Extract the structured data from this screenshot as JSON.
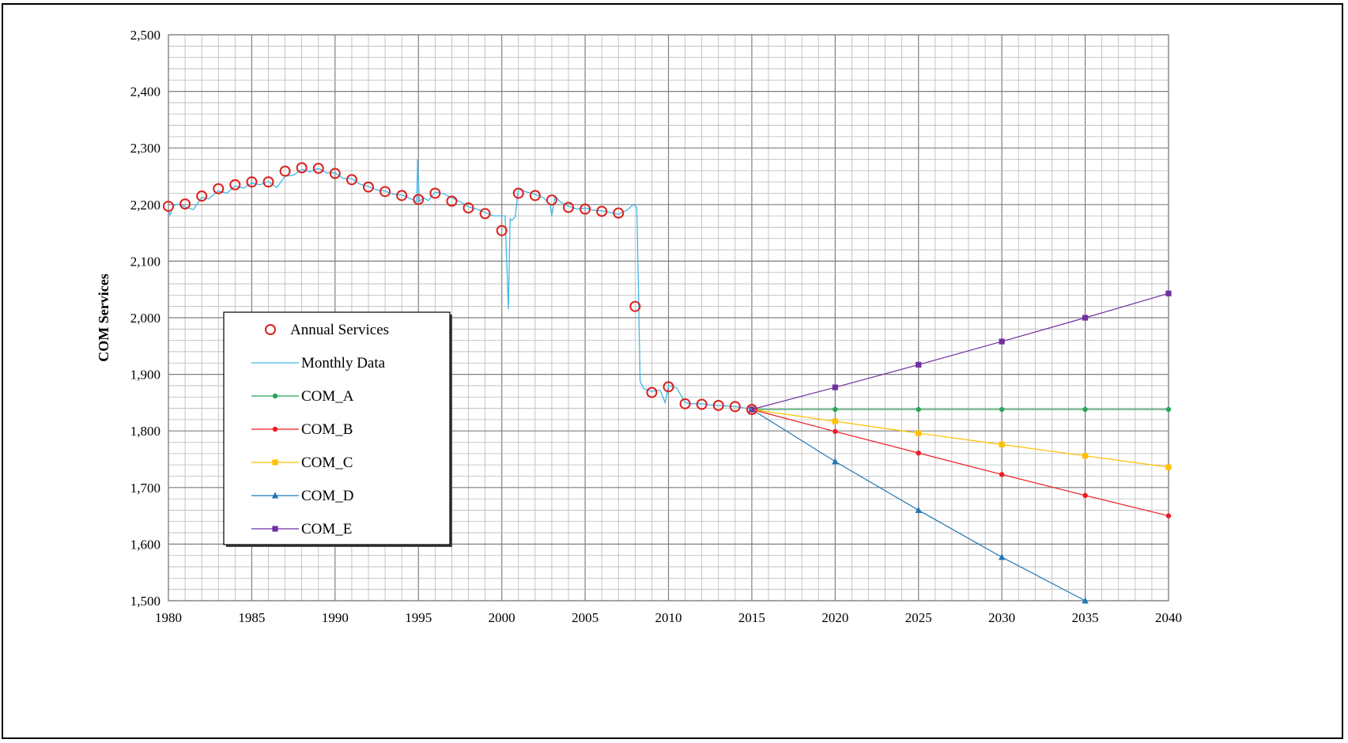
{
  "chart_data": {
    "type": "line",
    "title": "",
    "xlabel": "",
    "ylabel": "COM Services",
    "xlim": [
      1980,
      2040
    ],
    "ylim": [
      1500,
      2500
    ],
    "x_ticks": [
      "1980",
      "1985",
      "1990",
      "1995",
      "2000",
      "2005",
      "2010",
      "2015",
      "2020",
      "2025",
      "2030",
      "2035",
      "2040"
    ],
    "y_ticks": [
      "1,500",
      "1,600",
      "1,700",
      "1,800",
      "1,900",
      "2,000",
      "2,100",
      "2,200",
      "2,300",
      "2,400",
      "2,500"
    ],
    "grid": true,
    "legend_position": "center-left",
    "legend": [
      "Annual Services",
      "Monthly Data",
      "COM_A",
      "COM_B",
      "COM_C",
      "COM_D",
      "COM_E"
    ],
    "series": [
      {
        "name": "Annual Services",
        "style": "open-circle",
        "color": "#d9211f",
        "x": [
          1980,
          1981,
          1982,
          1983,
          1984,
          1985,
          1986,
          1987,
          1988,
          1989,
          1990,
          1991,
          1992,
          1993,
          1994,
          1995,
          1996,
          1997,
          1998,
          1999,
          2000,
          2001,
          2002,
          2003,
          2004,
          2005,
          2006,
          2007,
          2008,
          2009,
          2010,
          2011,
          2012,
          2013,
          2014,
          2015
        ],
        "values": [
          2197,
          2201,
          2215,
          2228,
          2235,
          2240,
          2240,
          2259,
          2265,
          2264,
          2255,
          2244,
          2231,
          2223,
          2216,
          2209,
          2220,
          2206,
          2194,
          2184,
          2154,
          2220,
          2216,
          2208,
          2195,
          2192,
          2188,
          2185,
          2020,
          1868,
          1878,
          1848,
          1847,
          1845,
          1843,
          1838
        ]
      },
      {
        "name": "Monthly Data",
        "style": "line",
        "color": "#41b6e6",
        "x": [
          1980,
          1980.1,
          1980.3,
          1980.6,
          1981,
          1981.5,
          1982,
          1982.4,
          1983,
          1983.5,
          1984,
          1984.5,
          1985,
          1985.5,
          1986,
          1986.5,
          1987,
          1987.5,
          1988,
          1988.5,
          1989,
          1989.5,
          1990,
          1990.5,
          1991,
          1991.5,
          1992,
          1992.5,
          1993,
          1993.5,
          1994,
          1994.5,
          1994.9,
          1994.95,
          1995.05,
          1995.3,
          1995.6,
          1996,
          1996.5,
          1997,
          1997.5,
          1998,
          1998.5,
          1999,
          1999.5,
          2000,
          2000.2,
          2000.4,
          2000.5,
          2000.6,
          2000.8,
          2001,
          2001.5,
          2002,
          2002.5,
          2002.9,
          2003,
          2003.2,
          2003.5,
          2004,
          2004.5,
          2005,
          2005.5,
          2006,
          2006.5,
          2007,
          2007.5,
          2007.9,
          2008.1,
          2008.2,
          2008.3,
          2008.5,
          2009,
          2009.5,
          2009.8,
          2010,
          2010.5,
          2011,
          2011.5,
          2012,
          2012.5,
          2013,
          2013.5,
          2014,
          2014.5,
          2015
        ],
        "values": [
          2190,
          2182,
          2198,
          2201,
          2196,
          2191,
          2213,
          2210,
          2224,
          2220,
          2233,
          2229,
          2238,
          2235,
          2241,
          2230,
          2250,
          2252,
          2262,
          2258,
          2264,
          2256,
          2256,
          2246,
          2246,
          2236,
          2232,
          2226,
          2224,
          2218,
          2217,
          2211,
          2205,
          2280,
          2205,
          2212,
          2207,
          2222,
          2219,
          2212,
          2205,
          2196,
          2192,
          2186,
          2180,
          2180,
          2180,
          2015,
          2175,
          2172,
          2178,
          2228,
          2222,
          2218,
          2212,
          2200,
          2180,
          2215,
          2205,
          2197,
          2192,
          2194,
          2190,
          2189,
          2186,
          2183,
          2190,
          2200,
          2195,
          2050,
          1888,
          1875,
          1870,
          1872,
          1850,
          1880,
          1876,
          1850,
          1848,
          1848,
          1846,
          1845,
          1844,
          1843,
          1841,
          1838
        ]
      },
      {
        "name": "COM_A",
        "style": "line-circle",
        "color": "#2aa55a",
        "x": [
          2015,
          2020,
          2025,
          2030,
          2035,
          2040
        ],
        "values": [
          1838,
          1838,
          1838,
          1838,
          1838,
          1838
        ]
      },
      {
        "name": "COM_B",
        "style": "line-circle",
        "color": "#ed1c24",
        "x": [
          2015,
          2020,
          2025,
          2030,
          2035,
          2040
        ],
        "values": [
          1838,
          1799,
          1761,
          1723,
          1686,
          1650
        ]
      },
      {
        "name": "COM_C",
        "style": "line-square",
        "color": "#ffc000",
        "x": [
          2015,
          2020,
          2025,
          2030,
          2035,
          2040
        ],
        "values": [
          1838,
          1817,
          1796,
          1776,
          1756,
          1736
        ]
      },
      {
        "name": "COM_D",
        "style": "line-triangle",
        "color": "#1f77b4",
        "x": [
          2015,
          2020,
          2025,
          2030,
          2035
        ],
        "values": [
          1838,
          1746,
          1660,
          1577,
          1500
        ]
      },
      {
        "name": "COM_E",
        "style": "line-square",
        "color": "#7030a0",
        "x": [
          2015,
          2020,
          2025,
          2030,
          2035,
          2040
        ],
        "values": [
          1838,
          1877,
          1917,
          1958,
          2000,
          2043
        ]
      }
    ]
  }
}
